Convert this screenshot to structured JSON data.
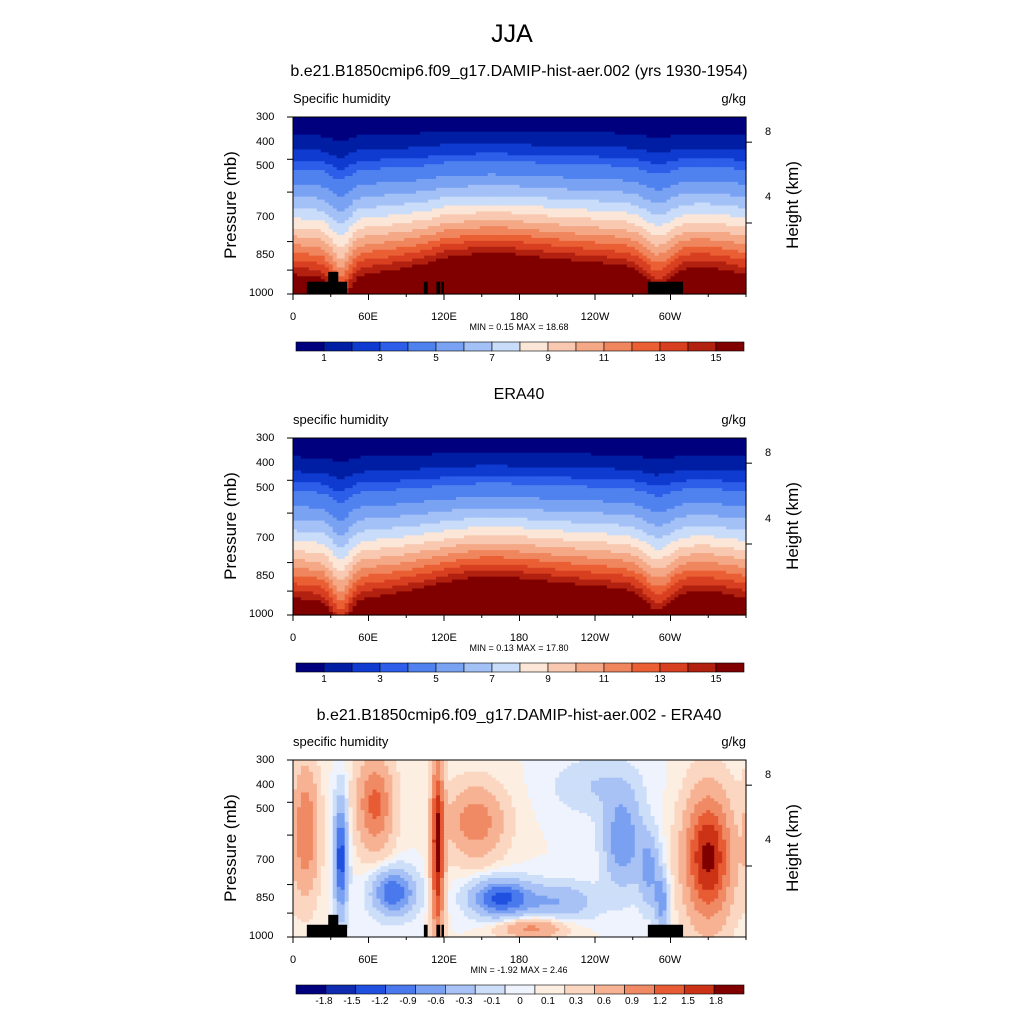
{
  "figure": {
    "title": "JJA"
  },
  "colors": {
    "abs_palette": [
      "#00007e",
      "#001ea3",
      "#0f3bd0",
      "#2c5ee9",
      "#5082ef",
      "#7aa2f3",
      "#a3c1f6",
      "#c9dcf9",
      "#fbe6d8",
      "#f8c9b0",
      "#f4a886",
      "#f0865e",
      "#ea5f34",
      "#d83f20",
      "#b22010",
      "#800000"
    ],
    "diff_palette": [
      "#00007e",
      "#0f2bb0",
      "#2050e0",
      "#4a78ed",
      "#7aa0f2",
      "#a8c2f6",
      "#cddef9",
      "#eef3fd",
      "#fdeee2",
      "#fbd6c0",
      "#f6b293",
      "#f08a64",
      "#e85c35",
      "#cc3316",
      "#800000"
    ]
  },
  "chart_data": [
    {
      "type": "heatmap",
      "title": "b.e21.B1850cmip6.f09_g17.DAMIP-hist-aer.002 (yrs 1930-1954)",
      "left_label": "Specific humidity",
      "right_label": "g/kg",
      "xlabel": "",
      "ylabel": "Pressure (mb)",
      "right_ylabel": "Height (km)",
      "x_ticks": [
        "0",
        "60E",
        "120E",
        "180",
        "120W",
        "60W"
      ],
      "y_ticks": [
        "300",
        "400",
        "500",
        "700",
        "850",
        "1000"
      ],
      "right_ticks": [
        "8",
        "4"
      ],
      "stats": "MIN =   0.15  MAX =  18.68",
      "colorbar_labels": [
        "1",
        "3",
        "5",
        "7",
        "9",
        "11",
        "13",
        "15"
      ],
      "levels": [
        0.5,
        1,
        1.5,
        2,
        3,
        4,
        5,
        6,
        7,
        8,
        9,
        10,
        11,
        12,
        13,
        14,
        15
      ],
      "min": 0.15,
      "max": 18.68
    },
    {
      "type": "heatmap",
      "title": "ERA40",
      "left_label": "specific humidity",
      "right_label": "g/kg",
      "xlabel": "",
      "ylabel": "Pressure (mb)",
      "right_ylabel": "Height (km)",
      "x_ticks": [
        "0",
        "60E",
        "120E",
        "180",
        "120W",
        "60W"
      ],
      "y_ticks": [
        "300",
        "400",
        "500",
        "700",
        "850",
        "1000"
      ],
      "right_ticks": [
        "8",
        "4"
      ],
      "stats": "MIN =   0.13  MAX =  17.80",
      "colorbar_labels": [
        "1",
        "3",
        "5",
        "7",
        "9",
        "11",
        "13",
        "15"
      ],
      "levels": [
        0.5,
        1,
        1.5,
        2,
        3,
        4,
        5,
        6,
        7,
        8,
        9,
        10,
        11,
        12,
        13,
        14,
        15
      ],
      "min": 0.13,
      "max": 17.8
    },
    {
      "type": "heatmap",
      "title": "b.e21.B1850cmip6.f09_g17.DAMIP-hist-aer.002 - ERA40",
      "left_label": "specific humidity",
      "right_label": "g/kg",
      "xlabel": "",
      "ylabel": "Pressure (mb)",
      "right_ylabel": "Height (km)",
      "x_ticks": [
        "0",
        "60E",
        "120E",
        "180",
        "120W",
        "60W"
      ],
      "y_ticks": [
        "300",
        "400",
        "500",
        "700",
        "850",
        "1000"
      ],
      "right_ticks": [
        "8",
        "4"
      ],
      "stats": "MIN =  -1.92  MAX =   2.46",
      "colorbar_labels": [
        "-1.8",
        "-1.5",
        "-1.2",
        "-0.9",
        "-0.6",
        "-0.3",
        "-0.1",
        "0",
        "0.1",
        "0.3",
        "0.6",
        "0.9",
        "1.2",
        "1.5",
        "1.8"
      ],
      "levels": [
        -1.8,
        -1.5,
        -1.2,
        -0.9,
        -0.6,
        -0.3,
        -0.1,
        0,
        0.1,
        0.3,
        0.6,
        0.9,
        1.2,
        1.5,
        1.8
      ],
      "min": -1.92,
      "max": 2.46
    }
  ]
}
